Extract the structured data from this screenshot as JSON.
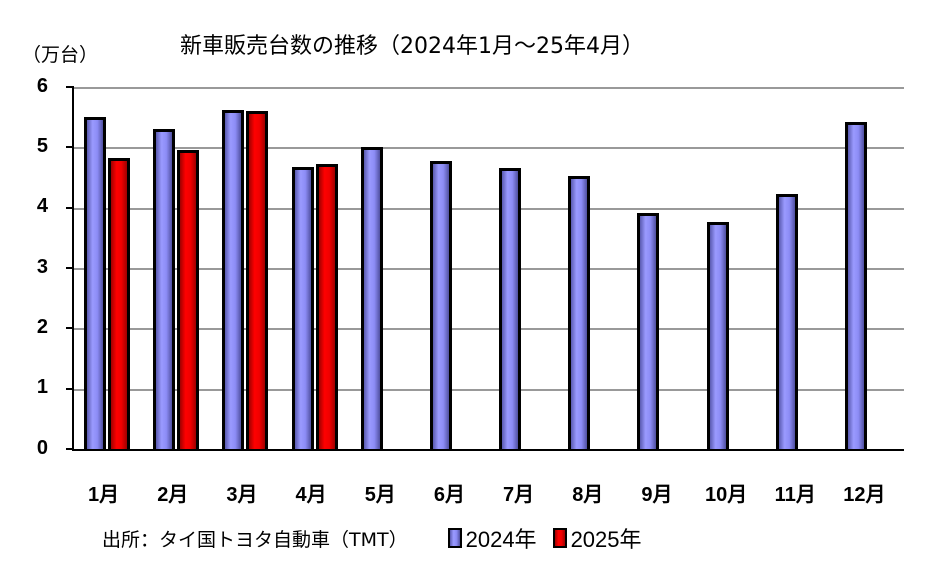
{
  "chart_data": {
    "type": "bar",
    "title": "新車販売台数の推移（2024年1月～25年4月）",
    "ylabel": "（万台）",
    "xlabel": "",
    "ylim": [
      0,
      6
    ],
    "yticks": [
      "0",
      "1",
      "2",
      "3",
      "4",
      "5",
      "6"
    ],
    "grid": true,
    "legend_position": "bottom",
    "categories": [
      "1月",
      "2月",
      "3月",
      "4月",
      "5月",
      "6月",
      "7月",
      "8月",
      "9月",
      "10月",
      "11月",
      "12月"
    ],
    "series": [
      {
        "name": "2024年",
        "color": "#8c8cf5",
        "values": [
          5.5,
          5.3,
          5.62,
          4.68,
          5.0,
          4.78,
          4.65,
          4.53,
          3.92,
          3.77,
          4.23,
          5.42
        ]
      },
      {
        "name": "2025年",
        "color": "#ff0000",
        "values": [
          4.82,
          4.95,
          5.6,
          4.73,
          null,
          null,
          null,
          null,
          null,
          null,
          null,
          null
        ]
      }
    ],
    "annotations": [
      "出所：タイ国トヨタ自動車（TMT）"
    ]
  },
  "title": "新車販売台数の推移（2024年1月～25年4月）",
  "unit": "（万台）",
  "yticks": [
    "6",
    "5",
    "4",
    "3",
    "2",
    "1",
    "0"
  ],
  "months": [
    "1月",
    "2月",
    "3月",
    "4月",
    "5月",
    "6月",
    "7月",
    "8月",
    "9月",
    "10月",
    "11月",
    "12月"
  ],
  "source": "出所：タイ国トヨタ自動車（TMT）",
  "legend": {
    "s2024": "2024年",
    "s2025": "2025年"
  }
}
